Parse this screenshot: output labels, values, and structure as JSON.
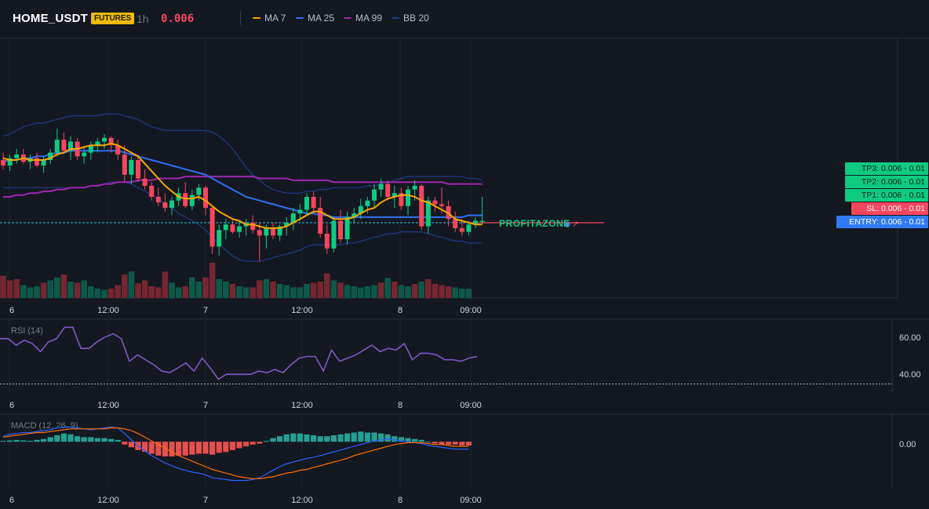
{
  "header": {
    "symbol": "HOME_USDT",
    "badge": "FUTURES",
    "timeframe": "1h",
    "last_price": "0.006",
    "indicators": [
      {
        "label": "MA 7",
        "color": "#f7a600"
      },
      {
        "label": "MA 25",
        "color": "#2f6ff5"
      },
      {
        "label": "MA 99",
        "color": "#9c27b0"
      },
      {
        "label": "BB 20",
        "color": "#1e3a8a"
      }
    ]
  },
  "price_tags": [
    {
      "label": "TP3: 0.006 - 0.01",
      "kind": "tp"
    },
    {
      "label": "TP2: 0.006 - 0.01",
      "kind": "tp"
    },
    {
      "label": "TP1: 0.006 - 0.01",
      "kind": "tp"
    },
    {
      "label": "SL: 0.006 - 0.01",
      "kind": "sl"
    },
    {
      "label": "ENTRY: 0.006 - 0.01",
      "kind": "entry"
    }
  ],
  "watermark": "PROFITAZONE",
  "chart_data": [
    {
      "type": "candlestick",
      "title": "HOME_USDT 1h",
      "x_tick_labels": [
        "6",
        "12:00",
        "7",
        "12:00",
        "8",
        "09:00"
      ],
      "y_scale": "hidden (price axis not shown; relative units 0-100)",
      "ohlc": [
        {
          "o": 60,
          "h": 64,
          "l": 55,
          "c": 57
        },
        {
          "o": 57,
          "h": 63,
          "l": 54,
          "c": 61
        },
        {
          "o": 61,
          "h": 66,
          "l": 58,
          "c": 63
        },
        {
          "o": 63,
          "h": 66,
          "l": 58,
          "c": 59
        },
        {
          "o": 59,
          "h": 63,
          "l": 55,
          "c": 61
        },
        {
          "o": 61,
          "h": 64,
          "l": 56,
          "c": 57
        },
        {
          "o": 57,
          "h": 62,
          "l": 53,
          "c": 60
        },
        {
          "o": 60,
          "h": 66,
          "l": 58,
          "c": 64
        },
        {
          "o": 64,
          "h": 77,
          "l": 62,
          "c": 71
        },
        {
          "o": 71,
          "h": 75,
          "l": 63,
          "c": 65
        },
        {
          "o": 65,
          "h": 73,
          "l": 60,
          "c": 70
        },
        {
          "o": 70,
          "h": 72,
          "l": 60,
          "c": 62
        },
        {
          "o": 62,
          "h": 67,
          "l": 58,
          "c": 64
        },
        {
          "o": 64,
          "h": 70,
          "l": 60,
          "c": 68
        },
        {
          "o": 68,
          "h": 72,
          "l": 64,
          "c": 70
        },
        {
          "o": 70,
          "h": 74,
          "l": 66,
          "c": 72
        },
        {
          "o": 72,
          "h": 73,
          "l": 64,
          "c": 68
        },
        {
          "o": 68,
          "h": 71,
          "l": 60,
          "c": 63
        },
        {
          "o": 63,
          "h": 68,
          "l": 48,
          "c": 52
        },
        {
          "o": 52,
          "h": 62,
          "l": 47,
          "c": 60
        },
        {
          "o": 60,
          "h": 63,
          "l": 48,
          "c": 50
        },
        {
          "o": 50,
          "h": 55,
          "l": 44,
          "c": 46
        },
        {
          "o": 46,
          "h": 48,
          "l": 38,
          "c": 40
        },
        {
          "o": 40,
          "h": 45,
          "l": 35,
          "c": 37
        },
        {
          "o": 37,
          "h": 42,
          "l": 32,
          "c": 34
        },
        {
          "o": 34,
          "h": 40,
          "l": 30,
          "c": 38
        },
        {
          "o": 38,
          "h": 45,
          "l": 35,
          "c": 42
        },
        {
          "o": 42,
          "h": 48,
          "l": 34,
          "c": 35
        },
        {
          "o": 35,
          "h": 44,
          "l": 33,
          "c": 41
        },
        {
          "o": 41,
          "h": 47,
          "l": 38,
          "c": 45
        },
        {
          "o": 45,
          "h": 46,
          "l": 30,
          "c": 34
        },
        {
          "o": 34,
          "h": 35,
          "l": 9,
          "c": 13
        },
        {
          "o": 13,
          "h": 25,
          "l": 8,
          "c": 22
        },
        {
          "o": 22,
          "h": 28,
          "l": 17,
          "c": 25
        },
        {
          "o": 25,
          "h": 28,
          "l": 20,
          "c": 21
        },
        {
          "o": 21,
          "h": 27,
          "l": 18,
          "c": 24
        },
        {
          "o": 24,
          "h": 28,
          "l": 19,
          "c": 26
        },
        {
          "o": 26,
          "h": 30,
          "l": 20,
          "c": 22
        },
        {
          "o": 22,
          "h": 26,
          "l": 5,
          "c": 19
        },
        {
          "o": 19,
          "h": 25,
          "l": 12,
          "c": 23
        },
        {
          "o": 23,
          "h": 26,
          "l": 17,
          "c": 19
        },
        {
          "o": 19,
          "h": 25,
          "l": 16,
          "c": 24
        },
        {
          "o": 24,
          "h": 29,
          "l": 19,
          "c": 26
        },
        {
          "o": 26,
          "h": 34,
          "l": 22,
          "c": 31
        },
        {
          "o": 31,
          "h": 36,
          "l": 27,
          "c": 33
        },
        {
          "o": 33,
          "h": 42,
          "l": 30,
          "c": 40
        },
        {
          "o": 40,
          "h": 43,
          "l": 32,
          "c": 34
        },
        {
          "o": 34,
          "h": 40,
          "l": 18,
          "c": 20
        },
        {
          "o": 20,
          "h": 25,
          "l": 9,
          "c": 12
        },
        {
          "o": 12,
          "h": 29,
          "l": 10,
          "c": 27
        },
        {
          "o": 27,
          "h": 33,
          "l": 15,
          "c": 17
        },
        {
          "o": 17,
          "h": 32,
          "l": 14,
          "c": 29
        },
        {
          "o": 29,
          "h": 34,
          "l": 26,
          "c": 31
        },
        {
          "o": 31,
          "h": 39,
          "l": 28,
          "c": 35
        },
        {
          "o": 35,
          "h": 40,
          "l": 31,
          "c": 38
        },
        {
          "o": 38,
          "h": 47,
          "l": 34,
          "c": 44
        },
        {
          "o": 44,
          "h": 50,
          "l": 40,
          "c": 47
        },
        {
          "o": 47,
          "h": 49,
          "l": 38,
          "c": 40
        },
        {
          "o": 40,
          "h": 46,
          "l": 34,
          "c": 42
        },
        {
          "o": 42,
          "h": 45,
          "l": 33,
          "c": 35
        },
        {
          "o": 35,
          "h": 46,
          "l": 30,
          "c": 44
        },
        {
          "o": 44,
          "h": 49,
          "l": 38,
          "c": 46
        },
        {
          "o": 46,
          "h": 47,
          "l": 22,
          "c": 24
        },
        {
          "o": 24,
          "h": 40,
          "l": 20,
          "c": 38
        },
        {
          "o": 38,
          "h": 40,
          "l": 32,
          "c": 36
        },
        {
          "o": 36,
          "h": 45,
          "l": 31,
          "c": 35
        },
        {
          "o": 35,
          "h": 38,
          "l": 24,
          "c": 28
        },
        {
          "o": 28,
          "h": 32,
          "l": 21,
          "c": 23
        },
        {
          "o": 23,
          "h": 28,
          "l": 19,
          "c": 21
        },
        {
          "o": 21,
          "h": 27,
          "l": 19,
          "c": 25
        },
        {
          "o": 25,
          "h": 29,
          "l": 23,
          "c": 27
        },
        {
          "o": 27,
          "h": 40,
          "l": 25,
          "c": 27
        }
      ],
      "ma7": [
        61,
        60,
        60,
        61,
        60,
        60,
        60,
        61,
        63,
        64,
        66,
        66,
        67,
        68,
        68,
        68,
        69,
        68,
        66,
        64,
        62,
        58,
        54,
        50,
        46,
        43,
        40,
        39,
        39,
        40,
        38,
        35,
        32,
        30,
        28,
        27,
        25,
        25,
        24,
        23,
        23,
        23,
        24,
        26,
        28,
        30,
        32,
        32,
        30,
        28,
        28,
        28,
        29,
        31,
        33,
        34,
        37,
        39,
        40,
        41,
        41,
        40,
        38,
        37,
        35,
        33,
        31,
        28,
        27,
        26,
        25,
        25
      ],
      "ma25": [
        59,
        60,
        60,
        61,
        61,
        62,
        62,
        63,
        64,
        64,
        65,
        65,
        65,
        65,
        65,
        65,
        65,
        65,
        64,
        63,
        62,
        61,
        60,
        59,
        58,
        57,
        56,
        55,
        54,
        53,
        52,
        50,
        48,
        46,
        44,
        42,
        40,
        39,
        38,
        37,
        36,
        35,
        34,
        33,
        32,
        31,
        31,
        30,
        30,
        29,
        29,
        29,
        29,
        29,
        29,
        29,
        29,
        29,
        29,
        29,
        29,
        29,
        29,
        29,
        29,
        29,
        29,
        29,
        29,
        30,
        30,
        30
      ],
      "ma99": [
        40,
        40,
        41,
        41,
        42,
        42,
        43,
        43,
        44,
        44,
        45,
        45,
        45,
        46,
        46,
        47,
        47,
        48,
        48,
        48,
        49,
        49,
        49,
        50,
        50,
        50,
        50,
        51,
        51,
        51,
        51,
        51,
        51,
        51,
        51,
        51,
        51,
        51,
        50,
        50,
        50,
        50,
        50,
        49,
        49,
        49,
        49,
        49,
        49,
        48,
        48,
        48,
        48,
        48,
        48,
        48,
        48,
        48,
        48,
        48,
        48,
        48,
        48,
        48,
        48,
        48,
        47,
        47,
        47,
        47,
        47,
        47
      ],
      "bb_upper": [
        73,
        74,
        76,
        78,
        79,
        80,
        80,
        81,
        82,
        83,
        84,
        84,
        84,
        84,
        84,
        85,
        85,
        85,
        84,
        83,
        82,
        80,
        78,
        77,
        76,
        76,
        76,
        76,
        76,
        76,
        76,
        75,
        73,
        70,
        66,
        61,
        56,
        52,
        49,
        46,
        44,
        43,
        42,
        42,
        42,
        43,
        43,
        44,
        44,
        45,
        45,
        45,
        45,
        45,
        46,
        46,
        47,
        48,
        49,
        50,
        51,
        51,
        51,
        51,
        51,
        51,
        51,
        51,
        51,
        50,
        50,
        49
      ],
      "bb_lower": [
        45,
        45,
        45,
        45,
        45,
        45,
        45,
        45,
        45,
        45,
        45,
        45,
        45,
        46,
        46,
        47,
        48,
        48,
        48,
        47,
        45,
        43,
        41,
        39,
        36,
        34,
        31,
        29,
        27,
        25,
        22,
        18,
        14,
        11,
        8,
        6,
        5,
        5,
        5,
        6,
        7,
        8,
        9,
        10,
        11,
        13,
        14,
        14,
        14,
        14,
        14,
        15,
        15,
        16,
        17,
        18,
        19,
        20,
        20,
        21,
        21,
        21,
        21,
        20,
        19,
        18,
        17,
        16,
        16,
        15,
        15,
        15
      ],
      "volume": [
        38,
        30,
        32,
        22,
        18,
        20,
        26,
        30,
        35,
        40,
        28,
        26,
        30,
        20,
        16,
        14,
        16,
        22,
        40,
        45,
        25,
        30,
        20,
        18,
        45,
        26,
        18,
        20,
        35,
        28,
        35,
        60,
        32,
        28,
        24,
        20,
        18,
        18,
        30,
        32,
        28,
        24,
        22,
        18,
        18,
        24,
        26,
        28,
        42,
        30,
        26,
        22,
        20,
        18,
        20,
        22,
        26,
        34,
        28,
        22,
        20,
        24,
        28,
        32,
        24,
        22,
        20,
        18,
        16,
        16
      ],
      "volume_up": [
        false,
        false,
        false,
        true,
        true,
        true,
        false,
        true,
        true,
        false,
        true,
        false,
        true,
        true,
        true,
        true,
        false,
        false,
        false,
        true,
        false,
        false,
        false,
        false,
        false,
        true,
        true,
        false,
        true,
        true,
        false,
        false,
        true,
        true,
        false,
        true,
        true,
        false,
        false,
        true,
        false,
        true,
        true,
        true,
        true,
        true,
        false,
        false,
        false,
        true,
        false,
        true,
        true,
        true,
        true,
        true,
        false,
        true,
        false,
        true,
        true,
        false,
        true,
        false,
        false,
        false,
        false,
        true,
        true,
        true
      ]
    },
    {
      "type": "line",
      "title": "RSI (14)",
      "x_tick_labels": [
        "6",
        "12:00",
        "7",
        "12:00",
        "8",
        "09:00"
      ],
      "y_tick_labels": [
        "60.00",
        "40.00"
      ],
      "ylim": [
        25,
        70
      ],
      "reference_level": 30,
      "values": [
        58,
        58,
        54,
        57,
        55,
        50,
        56,
        58,
        65,
        65,
        52,
        52,
        56,
        59,
        61,
        58,
        44,
        48,
        45,
        42,
        38,
        37,
        40,
        43,
        38,
        46,
        40,
        33,
        36,
        36,
        36,
        36,
        38,
        37,
        39,
        37,
        42,
        46,
        47,
        47,
        38,
        51,
        44,
        46,
        48,
        51,
        54,
        50,
        52,
        51,
        55,
        45,
        49,
        49,
        48,
        45,
        45,
        44,
        46,
        47
      ]
    },
    {
      "type": "bar+line",
      "title": "MACD (12, 26, 9)",
      "x_tick_labels": [
        "6",
        "12:00",
        "7",
        "12:00",
        "8",
        "09:00"
      ],
      "y_tick_labels": [
        "0.00"
      ],
      "ylim": [
        -5,
        3
      ],
      "histogram": [
        0.1,
        0.15,
        0.2,
        0.15,
        0.1,
        0.2,
        0.3,
        0.5,
        0.7,
        0.9,
        0.8,
        0.6,
        0.5,
        0.5,
        0.4,
        0.4,
        0.3,
        0.2,
        -0.3,
        -0.6,
        -0.9,
        -1.1,
        -1.3,
        -1.5,
        -1.6,
        -1.6,
        -1.5,
        -1.5,
        -1.4,
        -1.3,
        -1.3,
        -1.4,
        -1.2,
        -1.1,
        -0.9,
        -0.7,
        -0.5,
        -0.3,
        -0.2,
        0.1,
        0.4,
        0.6,
        0.8,
        0.9,
        0.9,
        0.8,
        0.7,
        0.6,
        0.6,
        0.7,
        0.8,
        0.9,
        1.0,
        1.1,
        1.0,
        1.0,
        0.9,
        0.8,
        0.6,
        0.5,
        0.4,
        0.3,
        0.2,
        0.0,
        -0.2,
        -0.3,
        -0.3,
        -0.3,
        -0.4,
        -0.4
      ],
      "macd_line": [
        0.6,
        0.8,
        0.9,
        1.0,
        1.0,
        1.1,
        1.2,
        1.3,
        1.5,
        1.6,
        1.6,
        1.5,
        1.4,
        1.3,
        1.4,
        1.5,
        1.6,
        1.5,
        0.9,
        0.2,
        -0.4,
        -1.0,
        -1.5,
        -1.9,
        -2.3,
        -2.6,
        -2.9,
        -3.1,
        -3.3,
        -3.4,
        -3.6,
        -3.9,
        -4.0,
        -4.1,
        -4.2,
        -4.2,
        -4.2,
        -4.1,
        -3.9,
        -3.5,
        -3.1,
        -2.7,
        -2.4,
        -2.2,
        -2.0,
        -1.8,
        -1.7,
        -1.5,
        -1.3,
        -1.1,
        -0.9,
        -0.7,
        -0.5,
        -0.3,
        -0.1,
        0.1,
        0.2,
        0.3,
        0.2,
        0.1,
        0.0,
        -0.1,
        -0.2,
        -0.4,
        -0.5,
        -0.6,
        -0.7,
        -0.8,
        -0.8,
        -0.8
      ],
      "signal_line": [
        0.5,
        0.6,
        0.7,
        0.8,
        0.9,
        1.0,
        1.0,
        1.1,
        1.2,
        1.3,
        1.4,
        1.4,
        1.4,
        1.4,
        1.4,
        1.4,
        1.5,
        1.5,
        1.4,
        1.2,
        0.9,
        0.5,
        0.1,
        -0.3,
        -0.7,
        -1.1,
        -1.5,
        -1.8,
        -2.1,
        -2.4,
        -2.7,
        -3.0,
        -3.2,
        -3.4,
        -3.6,
        -3.8,
        -3.9,
        -4.0,
        -4.0,
        -3.9,
        -3.8,
        -3.6,
        -3.4,
        -3.3,
        -3.1,
        -3.0,
        -2.8,
        -2.6,
        -2.4,
        -2.2,
        -2.0,
        -1.8,
        -1.5,
        -1.3,
        -1.1,
        -0.9,
        -0.7,
        -0.5,
        -0.3,
        -0.2,
        -0.1,
        -0.1,
        -0.1,
        -0.2,
        -0.3,
        -0.3,
        -0.4,
        -0.5,
        -0.5,
        -0.5
      ]
    }
  ]
}
